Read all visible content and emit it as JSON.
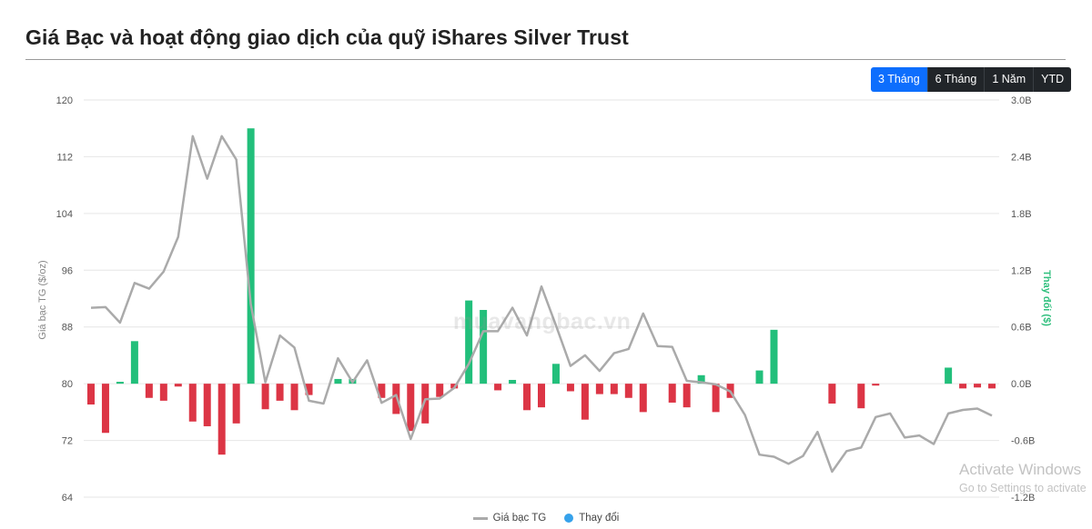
{
  "title": "Giá Bạc và hoạt động giao dịch của quỹ iShares Silver Trust",
  "range_buttons": [
    {
      "label": "3 Tháng",
      "active": true
    },
    {
      "label": "6 Tháng",
      "active": false
    },
    {
      "label": "1 Năm",
      "active": false
    },
    {
      "label": "YTD",
      "active": false
    }
  ],
  "watermark": "muavangbac.vn",
  "os_overlay": {
    "line1": "Activate Windows",
    "line2": "Go to Settings to activate"
  },
  "colors": {
    "price_line": "#aaaaaa",
    "bar_positive": "#22bf7b",
    "bar_negative": "#dc3545",
    "active_button": "#0d6efd",
    "legend_dot": "#36a2eb"
  },
  "chart_data": {
    "type": "bar",
    "ylabel_left": "Giá bạc TG ($/oz)",
    "ylabel_right": "Thay đổi ($)",
    "left_axis": {
      "min": 64,
      "max": 120,
      "ticks": [
        "120",
        "112",
        "104",
        "96",
        "88",
        "80",
        "72",
        "64"
      ]
    },
    "right_axis": {
      "min": -1.2,
      "max": 3.0,
      "ticks": [
        "3.0B",
        "2.4B",
        "1.8B",
        "1.2B",
        "0.6B",
        "0.0B",
        "-0.6B",
        "-1.2B"
      ]
    },
    "legend": [
      "Giá bạc TG",
      "Thay đổi"
    ],
    "series": [
      {
        "name": "Giá bạc TG",
        "kind": "line",
        "values": [
          90.7,
          90.8,
          88.6,
          94.2,
          93.4,
          95.8,
          100.7,
          114.9,
          108.9,
          114.9,
          111.6,
          91.2,
          80.2,
          86.8,
          85.1,
          77.6,
          77.2,
          83.6,
          80.2,
          83.3,
          77.3,
          78.4,
          72.2,
          77.8,
          77.9,
          79.4,
          82.8,
          87.4,
          87.4,
          90.7,
          86.8,
          93.7,
          88.2,
          82.5,
          84.0,
          81.8,
          84.3,
          84.9,
          89.9,
          85.3,
          85.2,
          80.4,
          80.2,
          79.9,
          78.9,
          75.6,
          70.0,
          69.7,
          68.7,
          69.8,
          73.2,
          67.6,
          70.5,
          71.0,
          75.3,
          75.8,
          72.4,
          72.7,
          71.5,
          75.8,
          76.3,
          76.5,
          75.5
        ]
      },
      {
        "name": "Thay đổi",
        "kind": "bar",
        "values": [
          -0.22,
          -0.52,
          0.02,
          0.45,
          -0.15,
          -0.18,
          -0.03,
          -0.4,
          -0.45,
          -0.75,
          -0.42,
          2.7,
          -0.27,
          -0.18,
          -0.28,
          -0.12,
          0.0,
          0.05,
          0.05,
          0.0,
          -0.15,
          -0.32,
          -0.5,
          -0.42,
          -0.14,
          -0.05,
          0.88,
          0.78,
          -0.07,
          0.04,
          -0.28,
          -0.25,
          0.21,
          -0.08,
          -0.38,
          -0.11,
          -0.11,
          -0.15,
          -0.3,
          0.0,
          -0.2,
          -0.25,
          0.09,
          -0.3,
          -0.15,
          0.0,
          0.14,
          0.57,
          0.0,
          0.0,
          0.0,
          -0.21,
          0.0,
          -0.26,
          -0.02,
          0.0,
          0.0,
          0.0,
          0.0,
          0.17,
          -0.05,
          -0.04,
          -0.05
        ]
      }
    ]
  }
}
